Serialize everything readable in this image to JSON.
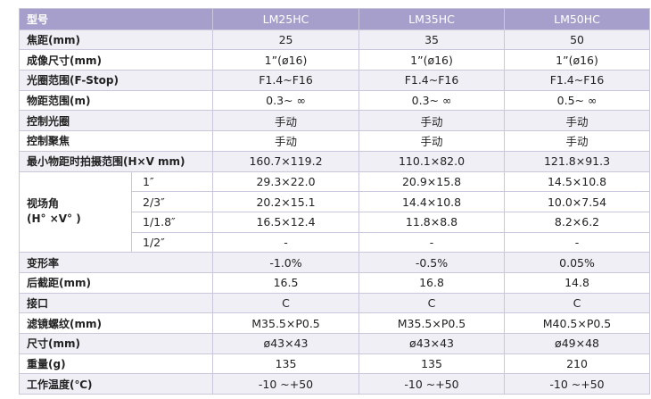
{
  "table": {
    "header": [
      "型号",
      "LM25HC",
      "LM35HC",
      "LM50HC"
    ],
    "rows": [
      [
        "焦距(mm)",
        "25",
        "35",
        "50"
      ],
      [
        "成像尺寸(mm)",
        "1”(ø16)",
        "1”(ø16)",
        "1”(ø16)"
      ],
      [
        "光圈范围(F-Stop)",
        "F1.4~F16",
        "F1.4~F16",
        "F1.4~F16"
      ],
      [
        "物距范围(m)",
        "0.3~ ∞",
        "0.3~ ∞",
        "0.5~ ∞"
      ],
      [
        "控制光圈",
        "手动",
        "手动",
        "手动"
      ],
      [
        "控制聚焦",
        "手动",
        "手动",
        "手动"
      ],
      [
        "最小物距时拍摄范围(H×V mm)",
        "160.7×119.2",
        "110.1×82.0",
        "121.8×91.3"
      ],
      {
        "label": "视场角\n(H° ×V° )",
        "sub": [
          [
            "1″",
            "29.3×22.0",
            "20.9×15.8",
            "14.5×10.8"
          ],
          [
            "2/3″",
            "20.2×15.1",
            "14.4×10.8",
            "10.0×7.54"
          ],
          [
            "1/1.8″",
            "16.5×12.4",
            "11.8×8.8",
            "8.2×6.2"
          ],
          [
            "1/2″",
            "-",
            "-",
            "-"
          ]
        ]
      },
      [
        "变形率",
        "-1.0%",
        "-0.5%",
        "0.05%"
      ],
      [
        "后截距(mm)",
        "16.5",
        "16.8",
        "14.8"
      ],
      [
        "接口",
        "C",
        "C",
        "C"
      ],
      [
        "滤镜螺纹(mm)",
        "M35.5×P0.5",
        "M35.5×P0.5",
        "M40.5×P0.5"
      ],
      [
        "尺寸(mm)",
        "ø43×43",
        "ø43×43",
        "ø49×48"
      ],
      [
        "重量(g)",
        "135",
        "135",
        "210"
      ],
      [
        "工作温度(℃)",
        "-10 ~+50",
        "-10 ~+50",
        "-10 ~+50"
      ]
    ]
  }
}
